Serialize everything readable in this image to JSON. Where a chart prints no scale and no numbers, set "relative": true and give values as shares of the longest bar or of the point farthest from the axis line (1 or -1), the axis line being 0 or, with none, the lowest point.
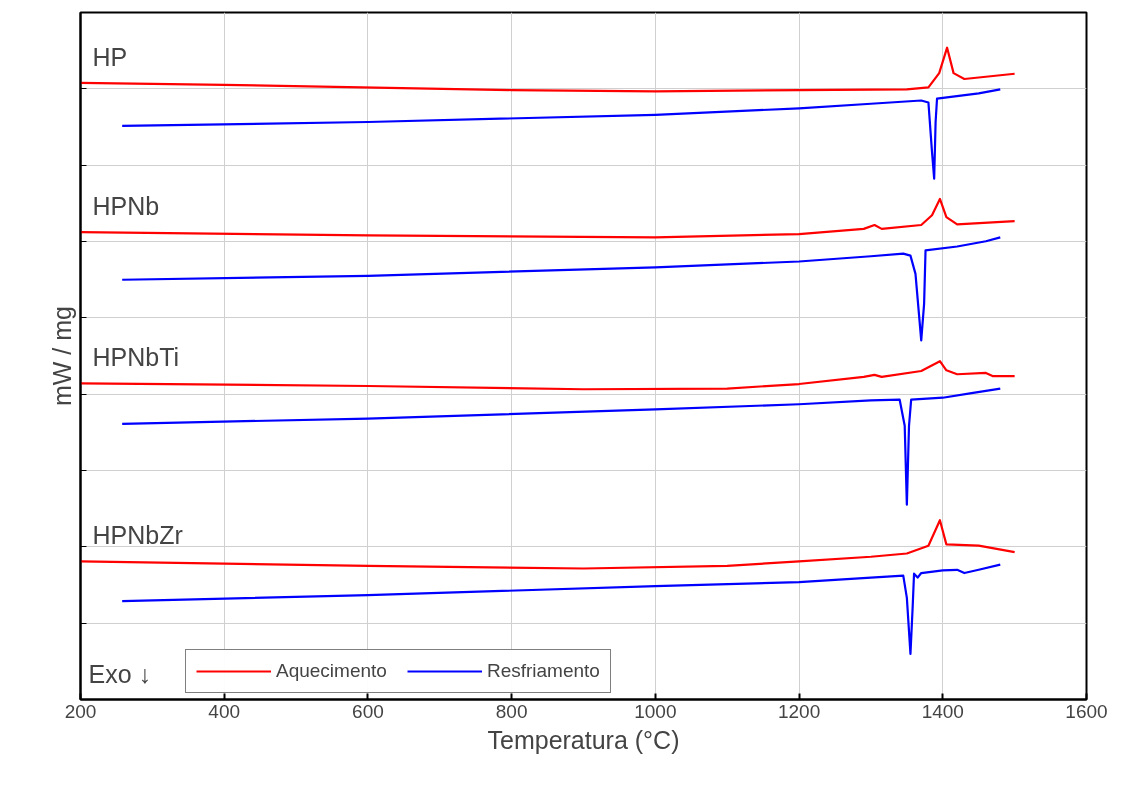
{
  "chart_data": {
    "type": "line",
    "relative": true,
    "xlabel": "Temperatura (°C)",
    "ylabel": "mW / mg",
    "xlim": [
      200,
      1600
    ],
    "xticks": [
      200,
      400,
      600,
      800,
      1000,
      1200,
      1400,
      1600
    ],
    "grid": true,
    "legend": "bottom left",
    "line_style": "solid",
    "marker": "none",
    "series": [
      {
        "name": "Aquecimento",
        "color": "#ff0000",
        "x": [
          200,
          400,
          800,
          1000,
          1200,
          1350,
          1380,
          1395,
          1406,
          1415,
          1430,
          1500
        ],
        "values": [
          0.946,
          0.943,
          0.935,
          0.933,
          0.935,
          0.936,
          0.939,
          0.961,
          1.0,
          0.961,
          0.952,
          0.96
        ]
      },
      {
        "name": "Resfriamento",
        "color": "#0000ff",
        "x": [
          258,
          600,
          1000,
          1200,
          1300,
          1370,
          1380,
          1385,
          1388,
          1390,
          1392,
          1450,
          1480
        ],
        "values": [
          0.88,
          0.886,
          0.897,
          0.907,
          0.914,
          0.919,
          0.916,
          0.84,
          0.799,
          0.886,
          0.922,
          0.93,
          0.936
        ]
      },
      {
        "color": "#ff0000",
        "x": [
          200,
          600,
          1000,
          1200,
          1290,
          1305,
          1315,
          1370,
          1385,
          1396,
          1405,
          1420,
          1500
        ],
        "values": [
          0.717,
          0.712,
          0.709,
          0.714,
          0.722,
          0.728,
          0.722,
          0.728,
          0.743,
          0.768,
          0.74,
          0.729,
          0.734
        ]
      },
      {
        "color": "#0000ff",
        "x": [
          258,
          600,
          1000,
          1200,
          1300,
          1345,
          1355,
          1362,
          1370,
          1374,
          1376,
          1420,
          1460,
          1480
        ],
        "values": [
          0.644,
          0.65,
          0.663,
          0.672,
          0.68,
          0.684,
          0.681,
          0.653,
          0.551,
          0.607,
          0.689,
          0.695,
          0.703,
          0.709
        ]
      },
      {
        "color": "#ff0000",
        "x": [
          200,
          600,
          900,
          1100,
          1200,
          1290,
          1305,
          1315,
          1370,
          1396,
          1405,
          1420,
          1460,
          1470,
          1500
        ],
        "values": [
          0.485,
          0.481,
          0.476,
          0.477,
          0.484,
          0.495,
          0.498,
          0.495,
          0.504,
          0.519,
          0.505,
          0.499,
          0.501,
          0.496,
          0.496
        ]
      },
      {
        "color": "#0000ff",
        "x": [
          258,
          600,
          1000,
          1200,
          1300,
          1340,
          1347,
          1350,
          1353,
          1356,
          1400,
          1440,
          1480
        ],
        "values": [
          0.423,
          0.431,
          0.445,
          0.453,
          0.459,
          0.46,
          0.42,
          0.299,
          0.42,
          0.46,
          0.463,
          0.47,
          0.477
        ]
      },
      {
        "color": "#ff0000",
        "x": [
          200,
          600,
          900,
          1100,
          1200,
          1300,
          1350,
          1380,
          1396,
          1405,
          1450,
          1500
        ],
        "values": [
          0.212,
          0.205,
          0.201,
          0.205,
          0.212,
          0.219,
          0.224,
          0.236,
          0.275,
          0.238,
          0.236,
          0.226
        ]
      },
      {
        "color": "#0000ff",
        "x": [
          258,
          600,
          1000,
          1200,
          1300,
          1345,
          1350,
          1355,
          1358,
          1360,
          1365,
          1370,
          1400,
          1420,
          1430,
          1450,
          1480
        ],
        "values": [
          0.151,
          0.16,
          0.174,
          0.18,
          0.187,
          0.19,
          0.156,
          0.07,
          0.14,
          0.193,
          0.187,
          0.194,
          0.198,
          0.199,
          0.194,
          0.199,
          0.207
        ]
      }
    ],
    "annotations": [
      "HP",
      "HPNb",
      "HPNbTi",
      "HPNbZr",
      "Exo ↓"
    ]
  }
}
